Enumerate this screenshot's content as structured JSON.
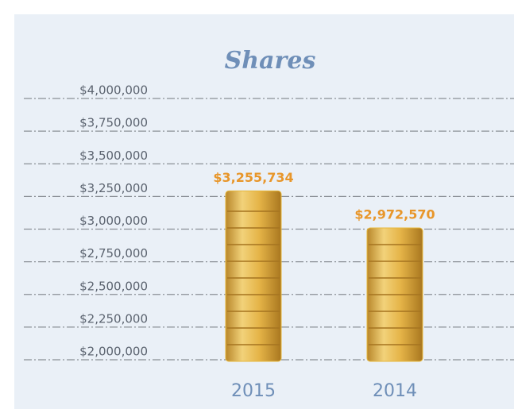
{
  "chart_data": {
    "type": "bar",
    "title": "Shares",
    "categories": [
      "2015",
      "2014"
    ],
    "values": [
      3255734,
      2972570
    ],
    "value_labels": [
      "$3,255,734",
      "$2,972,570"
    ],
    "color": "#e8b83a",
    "ylim": [
      2000000,
      4000000
    ],
    "yticks": [
      {
        "value": 2000000,
        "label": "$2,000,000"
      },
      {
        "value": 2250000,
        "label": "$2,250,000"
      },
      {
        "value": 2500000,
        "label": "$2,500,000"
      },
      {
        "value": 2750000,
        "label": "$2,750,000"
      },
      {
        "value": 3000000,
        "label": "$3,000,000"
      },
      {
        "value": 3250000,
        "label": "$3,250,000"
      },
      {
        "value": 3500000,
        "label": "$3,500,000"
      },
      {
        "value": 3750000,
        "label": "$3,750,000"
      },
      {
        "value": 4000000,
        "label": "$4,000,000"
      }
    ],
    "grid": true
  }
}
